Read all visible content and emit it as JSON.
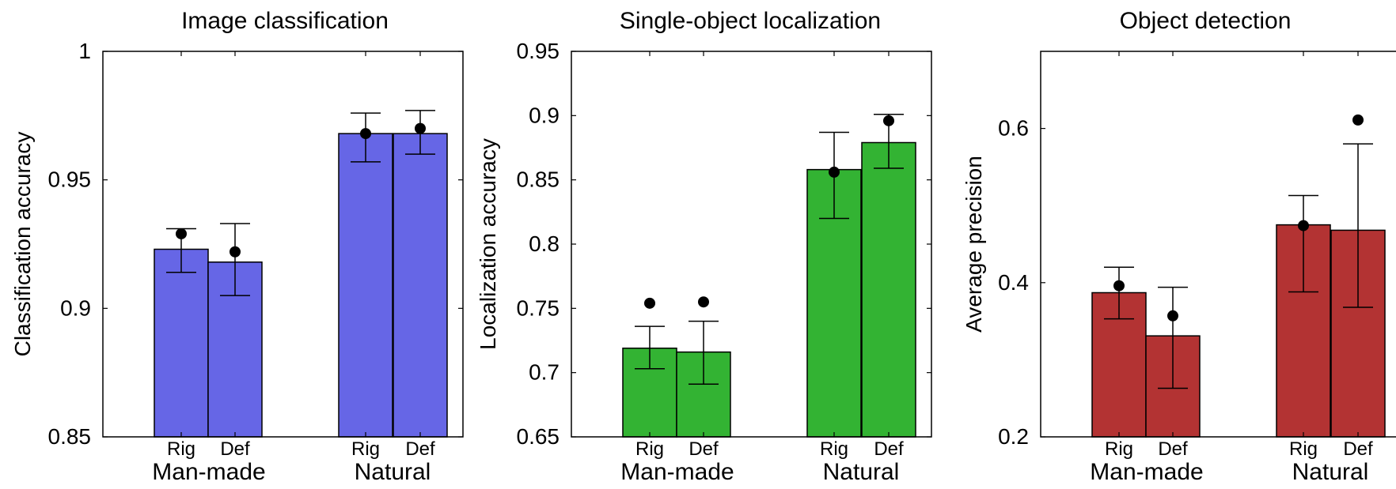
{
  "chart_data": [
    {
      "type": "bar",
      "title": "Image classification",
      "ylabel": "Classification accuracy",
      "ylim": [
        0.85,
        1.0
      ],
      "yticks": [
        0.85,
        0.9,
        0.95,
        1.0
      ],
      "ytick_labels": [
        "0.85",
        "0.9",
        "0.95",
        "1"
      ],
      "color": "#6666e6",
      "groups": [
        "Man-made",
        "Natural"
      ],
      "categories": [
        "Rig",
        "Def",
        "Rig",
        "Def"
      ],
      "values": [
        0.923,
        0.918,
        0.968,
        0.968
      ],
      "error_low": [
        0.914,
        0.905,
        0.957,
        0.96
      ],
      "error_high": [
        0.931,
        0.933,
        0.976,
        0.977
      ],
      "markers": [
        0.929,
        0.922,
        0.968,
        0.97
      ]
    },
    {
      "type": "bar",
      "title": "Single-object localization",
      "ylabel": "Localization accuracy",
      "ylim": [
        0.65,
        0.95
      ],
      "yticks": [
        0.65,
        0.7,
        0.75,
        0.8,
        0.85,
        0.9,
        0.95
      ],
      "ytick_labels": [
        "0.65",
        "0.7",
        "0.75",
        "0.8",
        "0.85",
        "0.9",
        "0.95"
      ],
      "color": "#33b333",
      "groups": [
        "Man-made",
        "Natural"
      ],
      "categories": [
        "Rig",
        "Def",
        "Rig",
        "Def"
      ],
      "values": [
        0.719,
        0.716,
        0.858,
        0.879
      ],
      "error_low": [
        0.703,
        0.691,
        0.82,
        0.859
      ],
      "error_high": [
        0.736,
        0.74,
        0.887,
        0.901
      ],
      "markers": [
        0.754,
        0.755,
        0.856,
        0.896
      ]
    },
    {
      "type": "bar",
      "title": "Object detection",
      "ylabel": "Average precision",
      "ylim": [
        0.2,
        0.7
      ],
      "yticks": [
        0.2,
        0.4,
        0.6
      ],
      "ytick_labels": [
        "0.2",
        "0.4",
        "0.6"
      ],
      "color": "#b33333",
      "groups": [
        "Man-made",
        "Natural"
      ],
      "categories": [
        "Rig",
        "Def",
        "Rig",
        "Def"
      ],
      "values": [
        0.387,
        0.331,
        0.475,
        0.468
      ],
      "error_low": [
        0.353,
        0.263,
        0.388,
        0.368
      ],
      "error_high": [
        0.42,
        0.394,
        0.513,
        0.58
      ],
      "markers": [
        0.396,
        0.357,
        0.474,
        0.611
      ]
    }
  ]
}
